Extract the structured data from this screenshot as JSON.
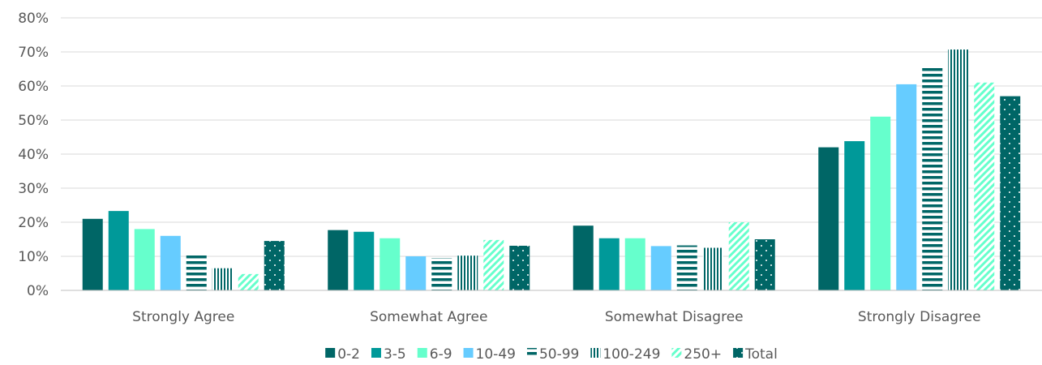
{
  "chart_data": {
    "type": "bar",
    "categories": [
      "Strongly Agree",
      "Somewhat Agree",
      "Somewhat Disagree",
      "Strongly Disagree"
    ],
    "series": [
      {
        "name": "0-2",
        "values": [
          21,
          17.7,
          19,
          42
        ],
        "color": "#006666",
        "pattern": "solid"
      },
      {
        "name": "3-5",
        "values": [
          23.3,
          17.2,
          15.3,
          43.8
        ],
        "color": "#009999",
        "pattern": "solid"
      },
      {
        "name": "6-9",
        "values": [
          18,
          15.3,
          15.3,
          51
        ],
        "color": "#66ffcc",
        "pattern": "solid"
      },
      {
        "name": "10-49",
        "values": [
          16,
          10,
          13,
          60.5
        ],
        "color": "#66ccff",
        "pattern": "solid"
      },
      {
        "name": "50-99",
        "values": [
          10.7,
          9.5,
          13.2,
          66
        ],
        "color": "#006666",
        "pattern": "horizontal-stripes"
      },
      {
        "name": "100-249",
        "values": [
          6.5,
          10.2,
          12.5,
          70.7
        ],
        "color": "#006666",
        "pattern": "vertical-stripes"
      },
      {
        "name": "250+",
        "values": [
          4.8,
          14.8,
          20,
          61
        ],
        "color": "#66ffcc",
        "pattern": "diagonal-stripes"
      },
      {
        "name": "Total",
        "values": [
          14.5,
          13.1,
          15,
          57
        ],
        "color": "#006666",
        "pattern": "dotted"
      }
    ],
    "yticks": [
      "0%",
      "10%",
      "20%",
      "30%",
      "40%",
      "50%",
      "60%",
      "70%",
      "80%"
    ],
    "ylim": [
      0,
      80
    ],
    "grid": true,
    "legend_position": "bottom"
  }
}
